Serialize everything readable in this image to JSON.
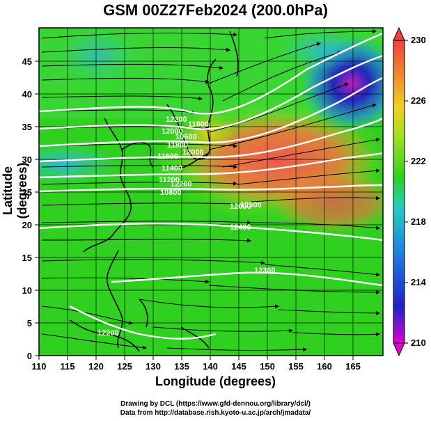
{
  "title": "GSM 00Z27Feb2024 (200.0hPa)",
  "axes": {
    "xlabel": "Longitude (degrees)",
    "ylabel": "Latitude  (degrees)",
    "x_ticks": [
      "110",
      "115",
      "120",
      "125",
      "130",
      "135",
      "140",
      "145",
      "150",
      "155",
      "160",
      "165"
    ],
    "y_ticks": [
      "0",
      "5",
      "10",
      "15",
      "20",
      "25",
      "30",
      "35",
      "40",
      "45"
    ]
  },
  "colorbar": {
    "ticks": [
      "210",
      "214",
      "218",
      "222",
      "226",
      "230"
    ]
  },
  "contour_labels": [
    "12200",
    "12000",
    "11800",
    "11600",
    "11400",
    "11200",
    "10800",
    "10600",
    "12000",
    "12400",
    "12300",
    "12200",
    "11800",
    "12000",
    "12200",
    "12500"
  ],
  "credits": {
    "line1": "Drawing by DCL (https://www.gfd-dennou.org/library/dcl/)",
    "line2": "Data from http://database.rish.kyoto-u.ac.jp/arch/jmadata/"
  },
  "chart_data": {
    "type": "heatmap",
    "title": "GSM 00Z27Feb2024 (200.0hPa)",
    "xlabel": "Longitude (degrees)",
    "ylabel": "Latitude  (degrees)",
    "xlim": [
      110,
      170
    ],
    "ylim": [
      0,
      50
    ],
    "colorbar_range": [
      210,
      230
    ],
    "colorbar_ticks": [
      210,
      214,
      218,
      222,
      226,
      230
    ],
    "grid": true,
    "overlays": [
      "temperature shading",
      "geopotential height contours (white)",
      "wind streamlines (black arrows)",
      "coastlines"
    ],
    "colors": {
      "low": "#e000d0",
      "blue": "#2030d0",
      "cyan": "#20c0e0",
      "green": "#30d020",
      "yellow": "#e0e020",
      "orange": "#f0a020",
      "red": "#f04040"
    }
  }
}
